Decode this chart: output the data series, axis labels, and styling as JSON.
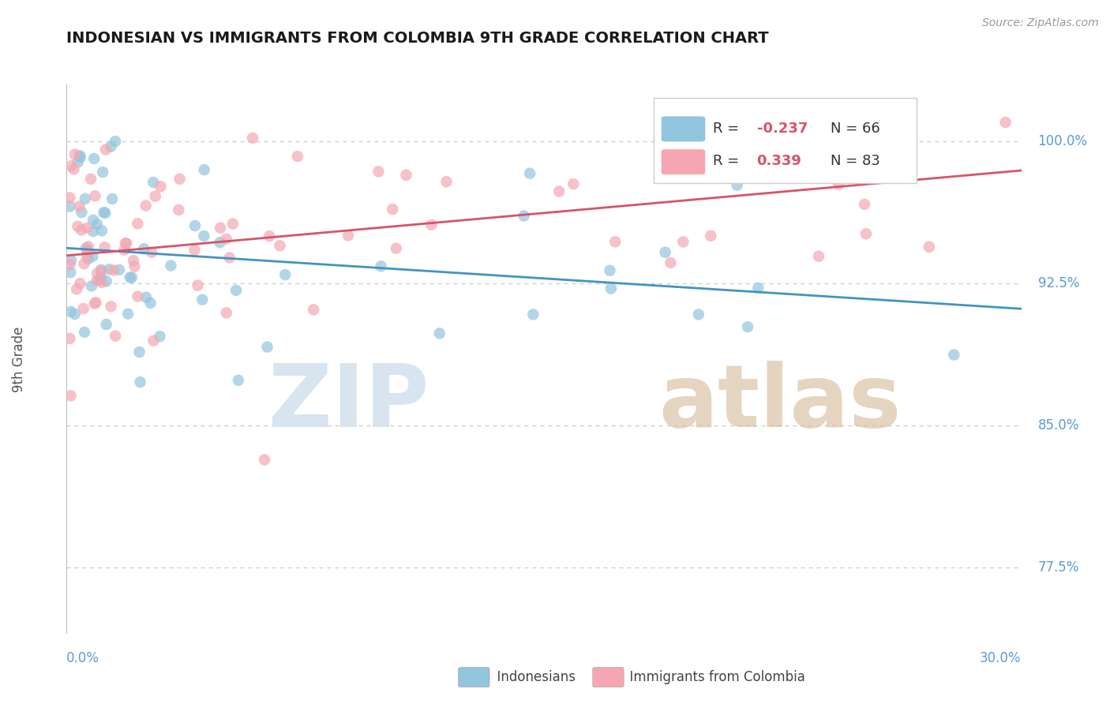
{
  "title": "INDONESIAN VS IMMIGRANTS FROM COLOMBIA 9TH GRADE CORRELATION CHART",
  "source": "Source: ZipAtlas.com",
  "ylabel": "9th Grade",
  "ymin": 0.74,
  "ymax": 1.03,
  "xmin": 0.0,
  "xmax": 0.3,
  "ytick_positions": [
    0.775,
    0.85,
    0.925,
    1.0
  ],
  "ytick_labels": [
    "77.5%",
    "85.0%",
    "92.5%",
    "100.0%"
  ],
  "blue_color": "#92c5de",
  "pink_color": "#f4a7b2",
  "blue_line_color": "#4393c3",
  "pink_line_color": "#d6546a",
  "background_color": "#ffffff",
  "title_color": "#1a1a1a",
  "axis_label_color": "#5b9bd5",
  "watermark_zip_color": "#d8e4f0",
  "watermark_atlas_color": "#d4b896",
  "grid_color": "#cccccc",
  "R_indo": -0.237,
  "N_indo": 66,
  "R_col": 0.339,
  "N_col": 83
}
